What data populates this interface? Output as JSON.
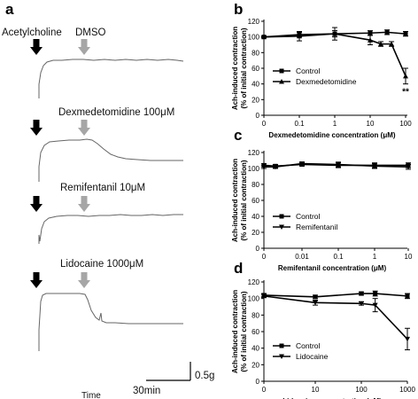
{
  "panels": {
    "a": "a",
    "b": "b",
    "c": "c",
    "d": "d"
  },
  "traces": {
    "stimulus_label": "Acetylcholine",
    "drug_labels": [
      "DMSO",
      "Dexmedetomidine 100μM",
      "Remifentanil 10μM",
      "Lidocaine 1000μM"
    ],
    "scale_y": "0.5g",
    "scale_x": "30min",
    "time_label": "Time",
    "colors": {
      "stimulus_arrow": "#000000",
      "drug_arrow": "#a6a6a6",
      "trace": "#666666"
    }
  },
  "chart_data": [
    {
      "type": "line",
      "panel": "b",
      "ylabel": "Ach-induced contraction\n(% of initial contraction)",
      "xlabel": "Dexmedetomidine concentration (μM)",
      "xscale": "log",
      "xticks": [
        "0",
        "0.1",
        "1",
        "10",
        "100"
      ],
      "yticks": [
        "0",
        "20",
        "40",
        "60",
        "80",
        "100",
        "120"
      ],
      "ylim": [
        0,
        120
      ],
      "legend": "bottom-left",
      "annotation": "**",
      "series": [
        {
          "name": "Control",
          "marker": "square",
          "points": [
            [
              0,
              100
            ],
            [
              0.1,
              103
            ],
            [
              1,
              104
            ],
            [
              10,
              105
            ],
            [
              30,
              106
            ],
            [
              100,
              104
            ]
          ],
          "err": [
            1,
            3,
            4,
            3,
            3,
            3
          ]
        },
        {
          "name": "Dexmedetomidine",
          "marker": "triangle",
          "points": [
            [
              0,
              100
            ],
            [
              0.1,
              101
            ],
            [
              1,
              104
            ],
            [
              10,
              96
            ],
            [
              20,
              91
            ],
            [
              40,
              91
            ],
            [
              100,
              50
            ]
          ],
          "err": [
            1,
            6,
            8,
            6,
            3,
            3,
            10
          ]
        }
      ]
    },
    {
      "type": "line",
      "panel": "c",
      "ylabel": "Ach-induced contraction\n(% of initial contraction)",
      "xlabel": "Remifentanil concentration (μM)",
      "xscale": "log",
      "xticks": [
        "0",
        "0.01",
        "0.1",
        "1",
        "10"
      ],
      "yticks": [
        "0",
        "20",
        "40",
        "60",
        "80",
        "100",
        "120"
      ],
      "ylim": [
        0,
        120
      ],
      "legend": "bottom-left",
      "series": [
        {
          "name": "Control",
          "marker": "square",
          "points": [
            [
              0,
              104
            ],
            [
              0.002,
              103
            ],
            [
              0.01,
              105
            ],
            [
              0.1,
              104
            ],
            [
              1,
              104
            ],
            [
              10,
              104
            ]
          ],
          "err": [
            2,
            2,
            2,
            3,
            3,
            3
          ]
        },
        {
          "name": "Remifentanil",
          "marker": "triangle-down",
          "points": [
            [
              0,
              102
            ],
            [
              0.002,
              102
            ],
            [
              0.01,
              106
            ],
            [
              0.1,
              105
            ],
            [
              1,
              103
            ],
            [
              10,
              102
            ]
          ],
          "err": [
            2,
            2,
            2,
            3,
            3,
            3
          ]
        }
      ]
    },
    {
      "type": "line",
      "panel": "d",
      "ylabel": "Ach-induced contraction\n(% of initial contraction)",
      "xlabel": "Lidocaine concentration (μM)",
      "xscale": "log",
      "xticks": [
        "0",
        "10",
        "100",
        "1000"
      ],
      "yticks": [
        "0",
        "20",
        "40",
        "60",
        "80",
        "100",
        "120"
      ],
      "ylim": [
        0,
        120
      ],
      "legend": "bottom-left",
      "series": [
        {
          "name": "Control",
          "marker": "square",
          "points": [
            [
              0,
              104
            ],
            [
              10,
              102
            ],
            [
              100,
              106
            ],
            [
              200,
              106
            ],
            [
              1000,
              103
            ]
          ],
          "err": [
            2,
            2,
            2,
            3,
            3
          ]
        },
        {
          "name": "Lidocaine",
          "marker": "triangle-down",
          "points": [
            [
              0,
              103
            ],
            [
              10,
              95
            ],
            [
              100,
              94
            ],
            [
              200,
              92
            ],
            [
              1000,
              51
            ]
          ],
          "err": [
            2,
            3,
            2,
            8,
            13
          ]
        }
      ]
    }
  ]
}
